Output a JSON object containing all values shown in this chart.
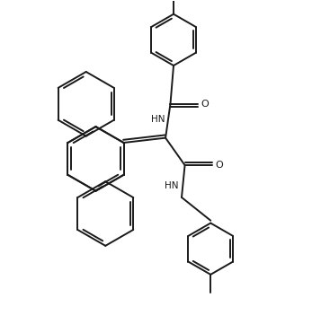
{
  "bg_color": "#ffffff",
  "line_color": "#1a1a1a",
  "text_color": "#1a1a1a",
  "lw": 1.4,
  "figsize": [
    3.67,
    3.61
  ],
  "dpi": 100,
  "xlim": [
    0.0,
    10.0
  ],
  "ylim": [
    0.0,
    10.0
  ]
}
